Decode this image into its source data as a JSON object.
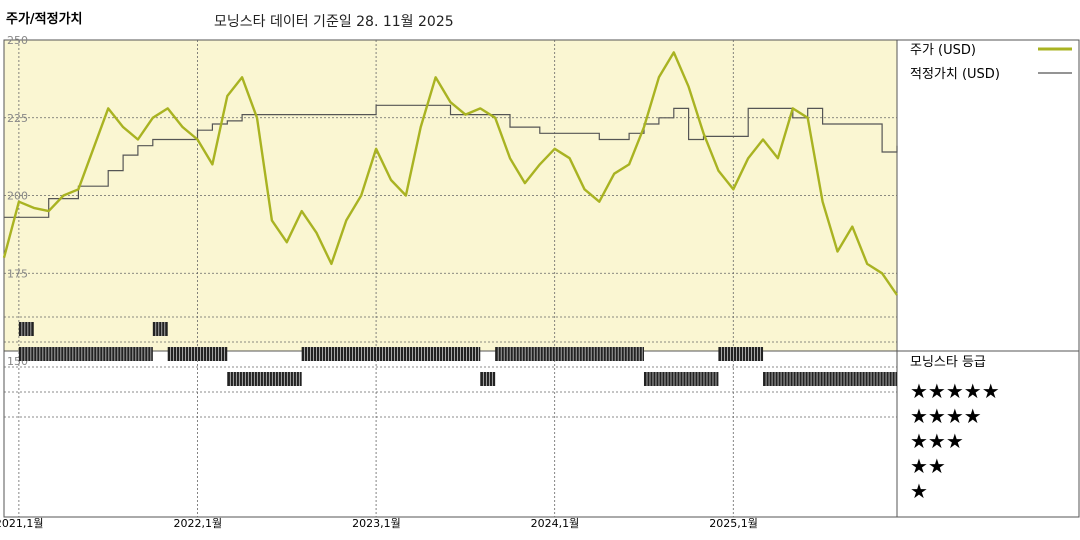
{
  "header": {
    "title": "주가/적정가치",
    "subtitle": "모닝스타 데이터 기준일 28. 11월 2025"
  },
  "legend": {
    "price_label": "주가 (USD)",
    "fair_value_label": "적정가치 (USD)",
    "rating_title": "모닝스타 등급",
    "stars": [
      "★★★★★",
      "★★★★",
      "★★★",
      "★★",
      "★"
    ]
  },
  "colors": {
    "price": "#a9b322",
    "fair_value": "#555555",
    "plot_bg": "#faf6d2",
    "rating_bars": "#222222"
  },
  "chart_data": {
    "type": "line",
    "x_axis": {
      "range": [
        "2021-01",
        "2025-12"
      ],
      "tick_labels": [
        "2021,1월",
        "2022,1월",
        "2023,1월",
        "2024,1월",
        "2025,1월"
      ],
      "tick_positions": [
        "2021-01",
        "2022-01",
        "2023-01",
        "2024-01",
        "2025-01"
      ]
    },
    "y_axis": {
      "range": [
        150,
        250
      ],
      "ticks": [
        150,
        175,
        200,
        225,
        250
      ]
    },
    "series": [
      {
        "name": "주가 (USD)",
        "points": [
          [
            "2020-12",
            180
          ],
          [
            "2021-01",
            198
          ],
          [
            "2021-02",
            196
          ],
          [
            "2021-03",
            195
          ],
          [
            "2021-04",
            200
          ],
          [
            "2021-05",
            202
          ],
          [
            "2021-06",
            215
          ],
          [
            "2021-07",
            228
          ],
          [
            "2021-08",
            222
          ],
          [
            "2021-09",
            218
          ],
          [
            "2021-10",
            225
          ],
          [
            "2021-11",
            228
          ],
          [
            "2021-12",
            222
          ],
          [
            "2022-01",
            218
          ],
          [
            "2022-02",
            210
          ],
          [
            "2022-03",
            232
          ],
          [
            "2022-04",
            238
          ],
          [
            "2022-05",
            225
          ],
          [
            "2022-06",
            192
          ],
          [
            "2022-07",
            185
          ],
          [
            "2022-08",
            195
          ],
          [
            "2022-09",
            188
          ],
          [
            "2022-10",
            178
          ],
          [
            "2022-11",
            192
          ],
          [
            "2022-12",
            200
          ],
          [
            "2023-01",
            215
          ],
          [
            "2023-02",
            205
          ],
          [
            "2023-03",
            200
          ],
          [
            "2023-04",
            222
          ],
          [
            "2023-05",
            238
          ],
          [
            "2023-06",
            230
          ],
          [
            "2023-07",
            226
          ],
          [
            "2023-08",
            228
          ],
          [
            "2023-09",
            225
          ],
          [
            "2023-10",
            212
          ],
          [
            "2023-11",
            204
          ],
          [
            "2023-12",
            210
          ],
          [
            "2024-01",
            215
          ],
          [
            "2024-02",
            212
          ],
          [
            "2024-03",
            202
          ],
          [
            "2024-04",
            198
          ],
          [
            "2024-05",
            207
          ],
          [
            "2024-06",
            210
          ],
          [
            "2024-07",
            222
          ],
          [
            "2024-08",
            238
          ],
          [
            "2024-09",
            246
          ],
          [
            "2024-10",
            235
          ],
          [
            "2024-11",
            220
          ],
          [
            "2024-12",
            208
          ],
          [
            "2025-01",
            202
          ],
          [
            "2025-02",
            212
          ],
          [
            "2025-03",
            218
          ],
          [
            "2025-04",
            212
          ],
          [
            "2025-05",
            228
          ],
          [
            "2025-06",
            225
          ],
          [
            "2025-07",
            198
          ],
          [
            "2025-08",
            182
          ],
          [
            "2025-09",
            190
          ],
          [
            "2025-10",
            178
          ],
          [
            "2025-11",
            175
          ],
          [
            "2025-12",
            168
          ]
        ]
      },
      {
        "name": "적정가치 (USD)",
        "points": [
          [
            "2020-12",
            193
          ],
          [
            "2021-01",
            193
          ],
          [
            "2021-03",
            199
          ],
          [
            "2021-05",
            203
          ],
          [
            "2021-07",
            208
          ],
          [
            "2021-08",
            213
          ],
          [
            "2021-09",
            216
          ],
          [
            "2021-10",
            218
          ],
          [
            "2022-01",
            221
          ],
          [
            "2022-02",
            223
          ],
          [
            "2022-03",
            224
          ],
          [
            "2022-04",
            226
          ],
          [
            "2023-01",
            229
          ],
          [
            "2023-06",
            226
          ],
          [
            "2023-10",
            222
          ],
          [
            "2023-12",
            220
          ],
          [
            "2024-04",
            218
          ],
          [
            "2024-06",
            220
          ],
          [
            "2024-07",
            223
          ],
          [
            "2024-08",
            225
          ],
          [
            "2024-09",
            228
          ],
          [
            "2024-10",
            218
          ],
          [
            "2024-11",
            219
          ],
          [
            "2025-02",
            228
          ],
          [
            "2025-05",
            225
          ],
          [
            "2025-06",
            228
          ],
          [
            "2025-07",
            223
          ],
          [
            "2025-09",
            223
          ],
          [
            "2025-11",
            214
          ],
          [
            "2025-12",
            216
          ]
        ]
      }
    ],
    "rating": {
      "levels": [
        "★★★★★",
        "★★★★",
        "★★★",
        "★★",
        "★"
      ],
      "segments": [
        {
          "stars": 2,
          "start": "2021-01",
          "end": "2021-02"
        },
        {
          "stars": 3,
          "start": "2021-01",
          "end": "2021-10"
        },
        {
          "stars": 2,
          "start": "2021-10",
          "end": "2021-11"
        },
        {
          "stars": 3,
          "start": "2021-11",
          "end": "2022-03"
        },
        {
          "stars": 4,
          "start": "2022-03",
          "end": "2022-08"
        },
        {
          "stars": 3,
          "start": "2022-08",
          "end": "2023-08"
        },
        {
          "stars": 4,
          "start": "2023-08",
          "end": "2023-09"
        },
        {
          "stars": 3,
          "start": "2023-09",
          "end": "2024-07"
        },
        {
          "stars": 4,
          "start": "2024-07",
          "end": "2024-12"
        },
        {
          "stars": 3,
          "start": "2024-12",
          "end": "2025-03"
        },
        {
          "stars": 4,
          "start": "2025-03",
          "end": "2025-12"
        }
      ]
    }
  }
}
